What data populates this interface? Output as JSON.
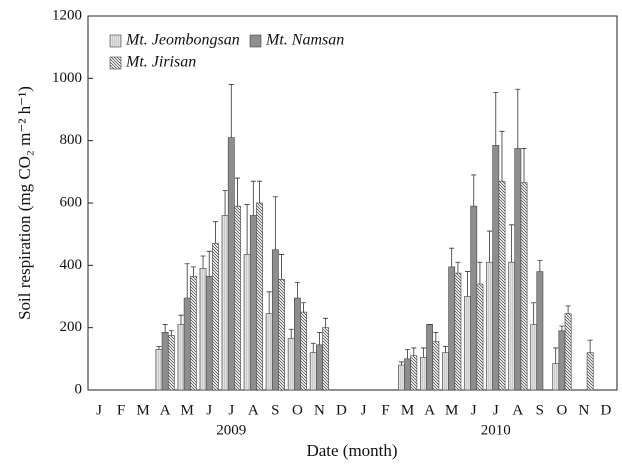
{
  "chart_data": {
    "type": "bar",
    "y_label": "Soil respiration (mg CO₂ m⁻² h⁻¹)",
    "x_label": "Date (month)",
    "categories": [
      "J",
      "F",
      "M",
      "A",
      "M",
      "J",
      "J",
      "A",
      "S",
      "O",
      "N",
      "D",
      "J",
      "F",
      "M",
      "A",
      "M",
      "J",
      "J",
      "A",
      "S",
      "O",
      "N",
      "D"
    ],
    "groups": [
      {
        "label": "2009",
        "start": 0,
        "count": 12
      },
      {
        "label": "2010",
        "start": 12,
        "count": 12
      }
    ],
    "ylim": [
      0,
      1200
    ],
    "yticks": [
      0,
      200,
      400,
      600,
      800,
      1000,
      1200
    ],
    "legend": "upper left",
    "series": [
      {
        "name": "Mt. Jeombongsan",
        "color": "#e2e2e2",
        "pattern": "vertical",
        "values": [
          null,
          null,
          null,
          130,
          210,
          390,
          560,
          435,
          245,
          165,
          120,
          null,
          null,
          null,
          80,
          105,
          120,
          300,
          410,
          410,
          210,
          85,
          null,
          null
        ],
        "errors": [
          null,
          null,
          null,
          10,
          30,
          40,
          80,
          160,
          70,
          30,
          30,
          null,
          null,
          null,
          10,
          30,
          20,
          80,
          100,
          120,
          70,
          50,
          null,
          null
        ]
      },
      {
        "name": "Mt. Namsan",
        "color": "#8e8e8e",
        "pattern": "solid",
        "values": [
          null,
          null,
          null,
          185,
          295,
          365,
          810,
          560,
          450,
          295,
          145,
          null,
          null,
          null,
          100,
          210,
          395,
          590,
          785,
          775,
          380,
          190,
          null,
          null
        ],
        "errors": [
          null,
          null,
          null,
          25,
          110,
          80,
          170,
          110,
          170,
          50,
          40,
          null,
          null,
          null,
          30,
          0,
          60,
          100,
          170,
          190,
          35,
          15,
          null,
          null
        ]
      },
      {
        "name": "Mt. Jirisan",
        "color": "#ffffff",
        "pattern": "hatch",
        "values": [
          null,
          null,
          null,
          175,
          365,
          470,
          590,
          600,
          355,
          250,
          200,
          null,
          null,
          null,
          110,
          155,
          375,
          340,
          670,
          665,
          null,
          245,
          120,
          null
        ],
        "errors": [
          null,
          null,
          null,
          15,
          30,
          70,
          90,
          70,
          80,
          30,
          30,
          null,
          null,
          null,
          25,
          30,
          35,
          70,
          160,
          110,
          null,
          25,
          40,
          null
        ]
      }
    ]
  }
}
